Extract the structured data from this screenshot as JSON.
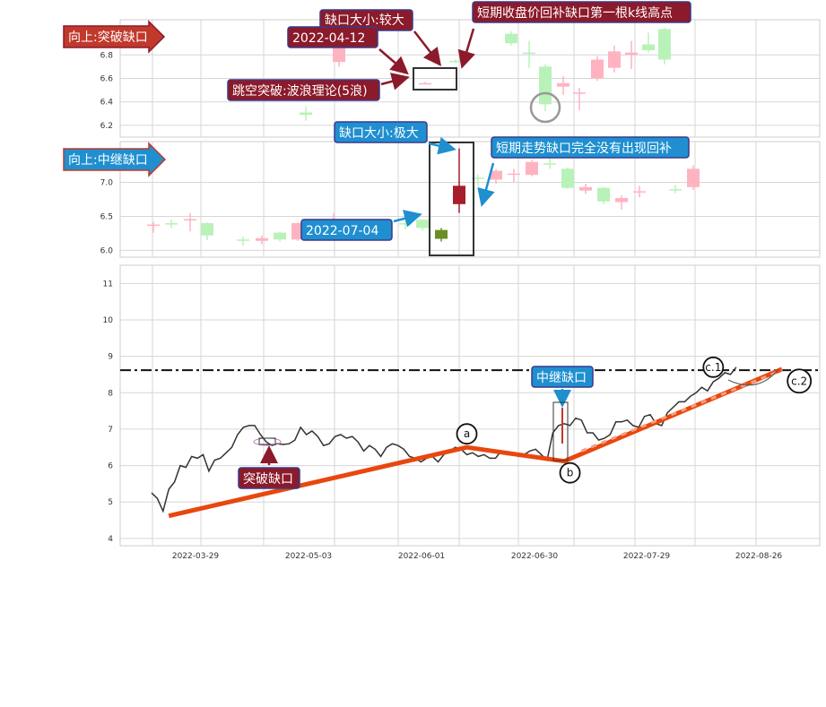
{
  "colors": {
    "up_gap": "#8b1a2b",
    "mid_gap": "#1f8fd0",
    "up_candle": "#ffb3c1",
    "down_candle": "#b8f2b8",
    "wave": "#e8470e",
    "grid": "#d6d6d6",
    "highlight_up": "#a61d2b",
    "highlight_down": "#6b8e23"
  },
  "chart_data": [
    {
      "type": "candlestick",
      "title": "向上:突破缺口",
      "ylim": [
        6.1,
        7.1
      ],
      "yticks": [
        6.2,
        6.4,
        6.6,
        6.8
      ],
      "candles": [
        {
          "i": 0,
          "o": 6.31,
          "c": 6.29,
          "h": 6.36,
          "l": 6.24
        },
        {
          "i": 1,
          "o": 6.74,
          "c": 6.98,
          "h": 7.02,
          "l": 6.7
        },
        {
          "i": 2,
          "o": 6.56,
          "c": 6.56,
          "h": 6.57,
          "l": 6.55
        },
        {
          "i": 3,
          "o": 6.75,
          "c": 6.74,
          "h": 6.76,
          "l": 6.73
        },
        {
          "i": 4,
          "o": 6.98,
          "c": 6.9,
          "h": 7.0,
          "l": 6.88
        },
        {
          "i": 5,
          "o": 6.82,
          "c": 6.81,
          "h": 6.92,
          "l": 6.69
        },
        {
          "i": 6,
          "o": 6.7,
          "c": 6.38,
          "h": 6.72,
          "l": 6.32
        },
        {
          "i": 7,
          "o": 6.53,
          "c": 6.56,
          "h": 6.62,
          "l": 6.46
        },
        {
          "i": 8,
          "o": 6.47,
          "c": 6.48,
          "h": 6.52,
          "l": 6.33
        },
        {
          "i": 9,
          "o": 6.6,
          "c": 6.76,
          "h": 6.79,
          "l": 6.58
        },
        {
          "i": 10,
          "o": 6.69,
          "c": 6.83,
          "h": 6.88,
          "l": 6.65
        },
        {
          "i": 11,
          "o": 6.8,
          "c": 6.82,
          "h": 6.92,
          "l": 6.68
        },
        {
          "i": 12,
          "o": 6.89,
          "c": 6.84,
          "h": 6.99,
          "l": 6.82
        },
        {
          "i": 13,
          "o": 7.02,
          "c": 6.76,
          "h": 7.03,
          "l": 6.72
        }
      ],
      "annotations": [
        {
          "text": "2022-04-12"
        },
        {
          "text": "缺口大小:较大"
        },
        {
          "text": "跳空突破:波浪理论(5浪)"
        },
        {
          "text": "短期收盘价回补缺口第一根k线高点"
        }
      ]
    },
    {
      "type": "candlestick",
      "title": "向上:中继缺口",
      "ylim": [
        5.9,
        7.6
      ],
      "yticks": [
        6.0,
        6.5,
        7.0
      ],
      "candles": [
        {
          "i": 0,
          "o": 6.38,
          "c": 6.38,
          "h": 6.42,
          "l": 6.26
        },
        {
          "i": 1,
          "o": 6.4,
          "c": 6.39,
          "h": 6.45,
          "l": 6.33
        },
        {
          "i": 2,
          "o": 6.44,
          "c": 6.46,
          "h": 6.55,
          "l": 6.28
        },
        {
          "i": 3,
          "o": 6.4,
          "c": 6.22,
          "h": 6.41,
          "l": 6.15
        },
        {
          "i": 4,
          "o": 6.16,
          "c": 6.15,
          "h": 6.2,
          "l": 6.07
        },
        {
          "i": 5,
          "o": 6.14,
          "c": 6.18,
          "h": 6.22,
          "l": 6.09
        },
        {
          "i": 6,
          "o": 6.26,
          "c": 6.16,
          "h": 6.27,
          "l": 6.13
        },
        {
          "i": 7,
          "o": 6.16,
          "c": 6.4,
          "h": 6.41,
          "l": 6.14
        },
        {
          "i": 8,
          "o": 6.4,
          "c": 6.22,
          "h": 6.41,
          "l": 6.18
        },
        {
          "i": 9,
          "o": 6.32,
          "c": 6.35,
          "h": 6.55,
          "l": 6.28
        },
        {
          "i": 10,
          "o": 6.4,
          "c": 6.38,
          "h": 6.45,
          "l": 6.31
        },
        {
          "i": 11,
          "o": 6.45,
          "c": 6.33,
          "h": 6.46,
          "l": 6.29
        },
        {
          "i": 12,
          "o": 6.3,
          "c": 6.17,
          "h": 6.33,
          "l": 6.13
        },
        {
          "i": 13,
          "o": 6.68,
          "c": 6.95,
          "h": 7.5,
          "l": 6.55
        },
        {
          "i": 14,
          "o": 7.07,
          "c": 7.05,
          "h": 7.12,
          "l": 6.95
        },
        {
          "i": 15,
          "o": 7.04,
          "c": 7.17,
          "h": 7.2,
          "l": 6.98
        },
        {
          "i": 16,
          "o": 7.12,
          "c": 7.13,
          "h": 7.2,
          "l": 7.0
        },
        {
          "i": 17,
          "o": 7.11,
          "c": 7.3,
          "h": 7.33,
          "l": 7.09
        },
        {
          "i": 18,
          "o": 7.28,
          "c": 7.26,
          "h": 7.4,
          "l": 7.2
        },
        {
          "i": 19,
          "o": 7.2,
          "c": 6.92,
          "h": 7.22,
          "l": 6.9
        },
        {
          "i": 20,
          "o": 6.88,
          "c": 6.93,
          "h": 6.98,
          "l": 6.83
        },
        {
          "i": 21,
          "o": 6.92,
          "c": 6.72,
          "h": 6.93,
          "l": 6.68
        },
        {
          "i": 22,
          "o": 6.71,
          "c": 6.77,
          "h": 6.81,
          "l": 6.6
        },
        {
          "i": 23,
          "o": 6.86,
          "c": 6.87,
          "h": 6.95,
          "l": 6.78
        },
        {
          "i": 24,
          "o": 6.9,
          "c": 6.89,
          "h": 6.96,
          "l": 6.84
        },
        {
          "i": 25,
          "o": 6.93,
          "c": 7.2,
          "h": 7.25,
          "l": 6.89
        }
      ],
      "annotations": [
        {
          "text": "2022-07-04"
        },
        {
          "text": "缺口大小:极大"
        },
        {
          "text": "短期走势缺口完全没有出现回补"
        }
      ]
    },
    {
      "type": "line",
      "ylim": [
        3.8,
        11.5
      ],
      "yticks": [
        4,
        5,
        6,
        7,
        8,
        9,
        10,
        11
      ],
      "xticks": [
        "2022-03-29",
        "2022-05-03",
        "2022-06-01",
        "2022-06-30",
        "2022-07-29",
        "2022-08-26"
      ],
      "price": [
        [
          0,
          5.25
        ],
        [
          1,
          5.1
        ],
        [
          2,
          4.75
        ],
        [
          3,
          5.35
        ],
        [
          4,
          5.55
        ],
        [
          5,
          6.0
        ],
        [
          6,
          5.95
        ],
        [
          7,
          6.25
        ],
        [
          8,
          6.2
        ],
        [
          9,
          6.3
        ],
        [
          10,
          5.85
        ],
        [
          11,
          6.15
        ],
        [
          12,
          6.2
        ],
        [
          13,
          6.35
        ],
        [
          14,
          6.5
        ],
        [
          15,
          6.85
        ],
        [
          16,
          7.05
        ],
        [
          17,
          7.1
        ],
        [
          18,
          7.1
        ],
        [
          19,
          6.85
        ],
        [
          20,
          6.65
        ],
        [
          21,
          6.55
        ],
        [
          22,
          6.6
        ],
        [
          23,
          6.58
        ],
        [
          24,
          6.6
        ],
        [
          25,
          6.7
        ],
        [
          26,
          7.05
        ],
        [
          27,
          6.85
        ],
        [
          28,
          6.95
        ],
        [
          29,
          6.8
        ],
        [
          30,
          6.55
        ],
        [
          31,
          6.6
        ],
        [
          32,
          6.8
        ],
        [
          33,
          6.85
        ],
        [
          34,
          6.75
        ],
        [
          35,
          6.8
        ],
        [
          36,
          6.65
        ],
        [
          37,
          6.4
        ],
        [
          38,
          6.55
        ],
        [
          39,
          6.45
        ],
        [
          40,
          6.25
        ],
        [
          41,
          6.5
        ],
        [
          42,
          6.6
        ],
        [
          43,
          6.55
        ],
        [
          44,
          6.45
        ],
        [
          45,
          6.25
        ],
        [
          46,
          6.2
        ],
        [
          47,
          6.1
        ],
        [
          48,
          6.2
        ],
        [
          49,
          6.25
        ],
        [
          50,
          6.1
        ],
        [
          51,
          6.3
        ],
        [
          52,
          6.4
        ],
        [
          53,
          6.5
        ],
        [
          54,
          6.45
        ],
        [
          55,
          6.3
        ],
        [
          56,
          6.35
        ],
        [
          57,
          6.25
        ],
        [
          58,
          6.3
        ],
        [
          59,
          6.2
        ],
        [
          60,
          6.2
        ],
        [
          61,
          6.4
        ],
        [
          62,
          6.3
        ],
        [
          63,
          6.35
        ],
        [
          64,
          6.25
        ],
        [
          65,
          6.3
        ],
        [
          66,
          6.4
        ],
        [
          67,
          6.45
        ],
        [
          68,
          6.3
        ],
        [
          69,
          6.15
        ],
        [
          70,
          6.9
        ],
        [
          71,
          7.1
        ],
        [
          72,
          7.15
        ],
        [
          73,
          7.1
        ],
        [
          74,
          7.3
        ],
        [
          75,
          7.25
        ],
        [
          76,
          6.9
        ],
        [
          77,
          6.9
        ],
        [
          78,
          6.7
        ],
        [
          79,
          6.75
        ],
        [
          80,
          6.85
        ],
        [
          81,
          7.2
        ],
        [
          82,
          7.2
        ],
        [
          83,
          7.25
        ],
        [
          84,
          7.1
        ],
        [
          85,
          7.05
        ],
        [
          86,
          7.35
        ],
        [
          87,
          7.4
        ],
        [
          88,
          7.15
        ],
        [
          89,
          7.1
        ],
        [
          90,
          7.45
        ],
        [
          91,
          7.6
        ],
        [
          92,
          7.75
        ],
        [
          93,
          7.75
        ],
        [
          94,
          7.9
        ],
        [
          95,
          8.0
        ],
        [
          96,
          8.15
        ],
        [
          97,
          8.05
        ],
        [
          98,
          8.3
        ],
        [
          99,
          8.4
        ],
        [
          100,
          8.55
        ],
        [
          101,
          8.5
        ],
        [
          102,
          8.7
        ]
      ],
      "wave_path": [
        [
          3,
          4.62
        ],
        [
          55,
          6.5
        ],
        [
          72,
          6.12
        ],
        [
          110,
          8.65
        ]
      ],
      "wave_dashed": [
        [
          75,
          6.4
        ],
        [
          110,
          8.62
        ]
      ],
      "resistance_level": 8.62,
      "markers": [
        {
          "label": "a",
          "x": 55,
          "y": 6.87
        },
        {
          "label": "b",
          "x": 73,
          "y": 5.8
        },
        {
          "label": "c.1",
          "x": 98,
          "y": 8.7
        },
        {
          "label": "c.2",
          "x": 113,
          "y": 8.32
        }
      ],
      "annotations": [
        {
          "text": "突破缺口"
        },
        {
          "text": "中继缺口"
        }
      ]
    }
  ]
}
